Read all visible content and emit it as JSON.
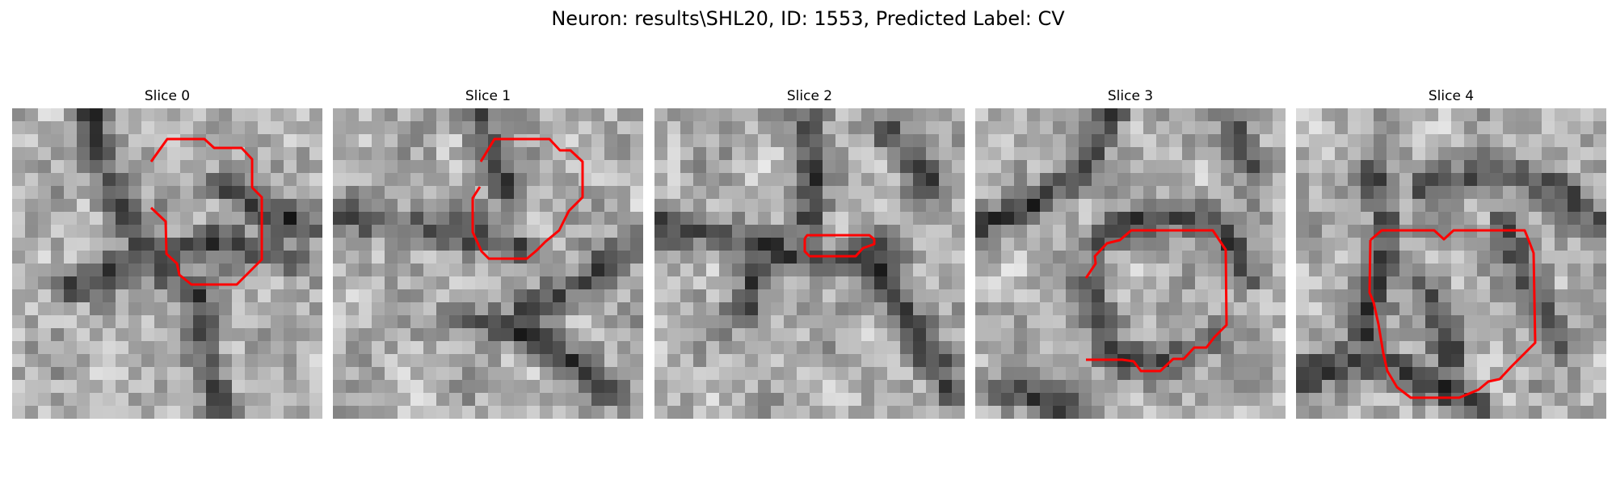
{
  "figure": {
    "title": "Neuron: results\\SHL20, ID: 1553, Predicted Label: CV",
    "outline_color": "#ff0000",
    "colormap": "grayscale",
    "panels": [
      {
        "title": "Slice 0"
      },
      {
        "title": "Slice 1"
      },
      {
        "title": "Slice 2"
      },
      {
        "title": "Slice 3"
      },
      {
        "title": "Slice 4"
      }
    ]
  }
}
